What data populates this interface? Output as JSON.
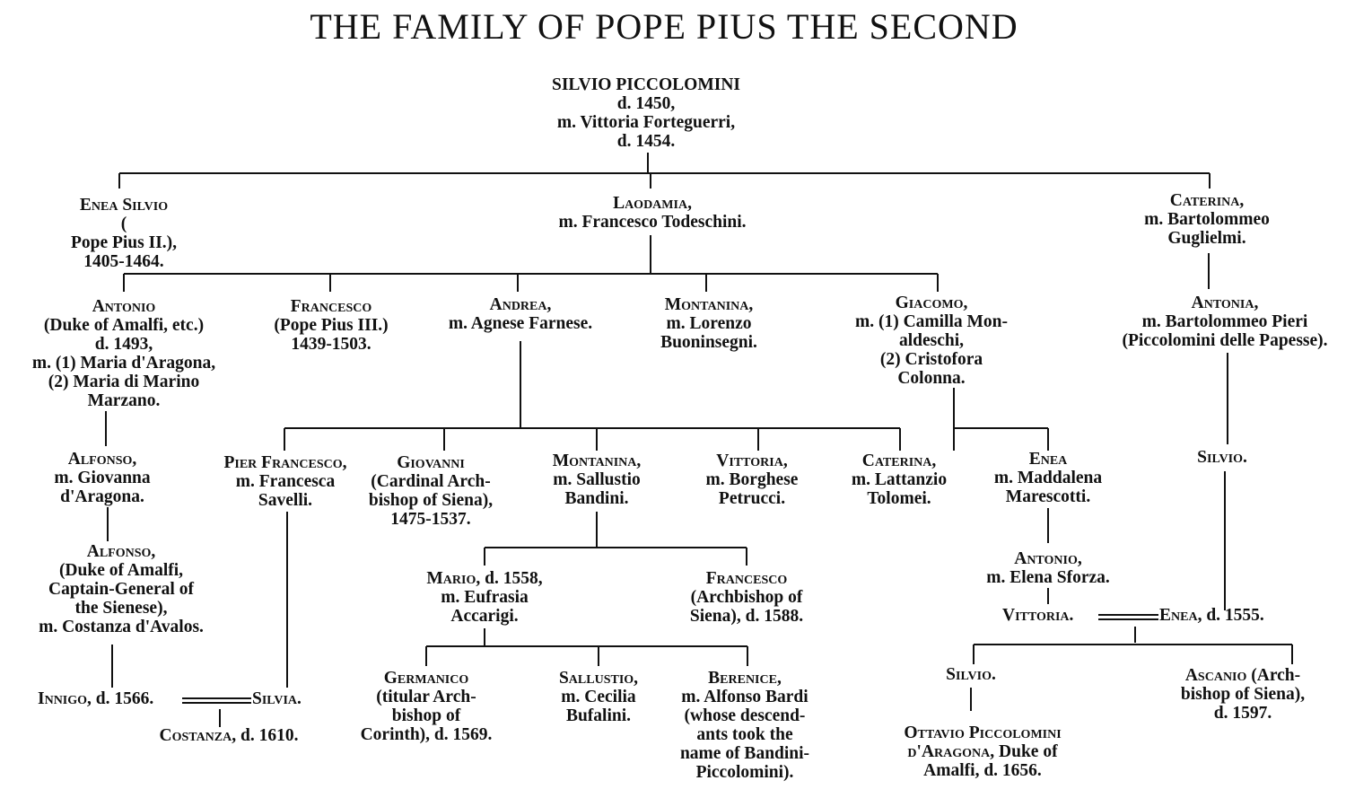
{
  "title": "THE FAMILY OF POPE PIUS THE SECOND",
  "nodes": [
    {
      "id": "silvio",
      "lines": [
        {
          "sc": "SILVIO PICCOLOMINI",
          "rest": ""
        },
        "d. 1450,",
        "m. Vittoria Forteguerri,",
        "d. 1454."
      ]
    },
    {
      "id": "enea_silvio",
      "lines": [
        {
          "sc": "Enea Silvio",
          "rest": ""
        },
        {
          "sc": "",
          "rest": "("
        },
        "Pope Pius II.),",
        "1405-1464."
      ]
    },
    {
      "id": "laodamia",
      "lines": [
        {
          "sc": "Laodamia",
          "rest": ","
        },
        "m. Francesco Todeschini."
      ]
    },
    {
      "id": "caterina1",
      "lines": [
        {
          "sc": "Caterina",
          "rest": ","
        },
        "m. Bartolommeo",
        "Guglielmi."
      ]
    },
    {
      "id": "antonio1",
      "lines": [
        {
          "sc": "Antonio",
          "rest": ""
        },
        "(Duke of Amalfi, etc.)",
        "d. 1493,",
        "m. (1) Maria d'Aragona,",
        "(2) Maria di Marino",
        "Marzano."
      ]
    },
    {
      "id": "francesco1",
      "lines": [
        {
          "sc": "Francesco",
          "rest": ""
        },
        "(Pope Pius III.)",
        "1439-1503."
      ]
    },
    {
      "id": "andrea",
      "lines": [
        {
          "sc": "Andrea",
          "rest": ","
        },
        "m. Agnese Farnese."
      ]
    },
    {
      "id": "montanina1",
      "lines": [
        {
          "sc": "Montanina",
          "rest": ","
        },
        "m. Lorenzo",
        "Buoninsegni."
      ]
    },
    {
      "id": "giacomo",
      "lines": [
        {
          "sc": "Giacomo",
          "rest": ","
        },
        "m. (1) Camilla Mon-",
        "aldeschi,",
        "(2) Cristofora",
        "Colonna."
      ]
    },
    {
      "id": "antonia",
      "lines": [
        {
          "sc": "Antonia",
          "rest": ","
        },
        "m. Bartolommeo Pieri",
        "(Piccolomini delle Papesse)."
      ]
    },
    {
      "id": "alfonso1",
      "lines": [
        {
          "sc": "Alfonso",
          "rest": ","
        },
        "m. Giovanna",
        "d'Aragona."
      ]
    },
    {
      "id": "pier_francesco",
      "lines": [
        {
          "sc": "Pier Francesco",
          "rest": ","
        },
        "m. Francesca",
        "Savelli."
      ]
    },
    {
      "id": "giovanni",
      "lines": [
        {
          "sc": "Giovanni",
          "rest": ""
        },
        "(Cardinal Arch-",
        "bishop of Siena),",
        "1475-1537."
      ]
    },
    {
      "id": "montanina2",
      "lines": [
        {
          "sc": "Montanina",
          "rest": ","
        },
        "m. Sallustio",
        "Bandini."
      ]
    },
    {
      "id": "vittoria1",
      "lines": [
        {
          "sc": "Vittoria",
          "rest": ","
        },
        "m. Borghese",
        "Petrucci."
      ]
    },
    {
      "id": "caterina2",
      "lines": [
        {
          "sc": "Caterina",
          "rest": ","
        },
        "m. Lattanzio",
        "Tolomei."
      ]
    },
    {
      "id": "enea2",
      "lines": [
        {
          "sc": "Enea",
          "rest": ""
        },
        "m. Maddalena",
        "Marescotti."
      ]
    },
    {
      "id": "silvio2",
      "lines": [
        {
          "sc": "Silvio",
          "rest": "."
        }
      ]
    },
    {
      "id": "alfonso2",
      "lines": [
        {
          "sc": "Alfonso",
          "rest": ","
        },
        "(Duke of Amalfi,",
        "Captain-General of",
        "the Sienese),",
        "m. Costanza d'Avalos."
      ]
    },
    {
      "id": "mario",
      "lines": [
        {
          "sc": "Mario",
          "rest": ", d. 1558,"
        },
        "m. Eufrasia",
        "Accarigi."
      ]
    },
    {
      "id": "francesco2",
      "lines": [
        {
          "sc": "Francesco",
          "rest": ""
        },
        "(Archbishop of",
        "Siena), d. 1588."
      ]
    },
    {
      "id": "antonio2",
      "lines": [
        {
          "sc": "Antonio",
          "rest": ","
        },
        "m. Elena Sforza."
      ]
    },
    {
      "id": "germanico",
      "lines": [
        {
          "sc": "Germanico",
          "rest": ""
        },
        "(titular Arch-",
        "bishop of",
        "Corinth), d. 1569."
      ]
    },
    {
      "id": "sallustio",
      "lines": [
        {
          "sc": "Sallustio",
          "rest": ","
        },
        "m. Cecilia",
        "Bufalini."
      ]
    },
    {
      "id": "berenice",
      "lines": [
        {
          "sc": "Berenice",
          "rest": ","
        },
        "m. Alfonso Bardi",
        "(whose descend-",
        "ants took the",
        "name of Bandini-",
        "Piccolomini)."
      ]
    },
    {
      "id": "silvio3",
      "lines": [
        {
          "sc": "Silvio",
          "rest": "."
        }
      ]
    },
    {
      "id": "ottavio",
      "lines": [
        {
          "sc": "Ottavio Piccolomini",
          "rest": ""
        },
        {
          "sc": "d'Aragona",
          "rest": ", Duke of"
        },
        "Amalfi, d. 1656."
      ]
    },
    {
      "id": "ascanio",
      "lines": [
        {
          "sc": "Ascanio",
          "rest": " (Arch-"
        },
        "bishop of Siena),",
        "d. 1597."
      ]
    },
    {
      "id": "costanza",
      "lines": [
        {
          "sc": "Costanza",
          "rest": ", d. 1610."
        }
      ]
    }
  ],
  "marriages": [
    {
      "id": "innigo_silvia",
      "left": {
        "sc": "Innigo",
        "rest": ", d. 1566."
      },
      "right": {
        "sc": "Silvia",
        "rest": "."
      }
    },
    {
      "id": "vittoria_enea",
      "left": {
        "sc": "Vittoria",
        "rest": "."
      },
      "right": {
        "sc": "Enea",
        "rest": ", d. 1555."
      }
    }
  ]
}
